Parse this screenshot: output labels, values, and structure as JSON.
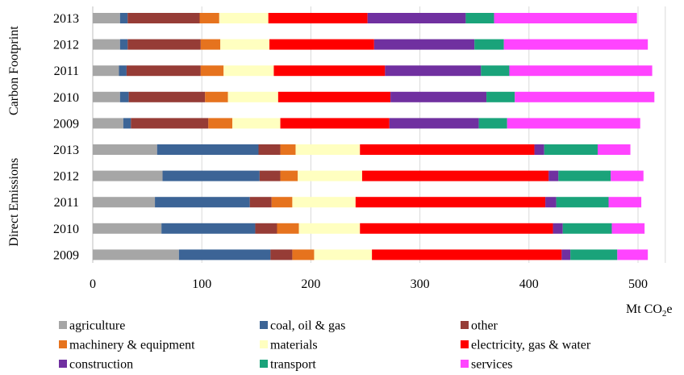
{
  "chart_data": {
    "type": "bar",
    "orientation": "horizontal",
    "stacked": true,
    "xlabel_unit": "Mt CO",
    "xlabel_subscript": "2",
    "xlabel_suffix": "e",
    "xlim": [
      0,
      525
    ],
    "xticks": [
      0,
      100,
      200,
      300,
      400,
      500
    ],
    "grid": true,
    "legend_position": "bottom",
    "groups": [
      {
        "name": "Carbon Footprint",
        "categories": [
          "2013",
          "2012",
          "2011",
          "2010",
          "2009"
        ]
      },
      {
        "name": "Direct Emissions",
        "categories": [
          "2013",
          "2012",
          "2011",
          "2010",
          "2009"
        ]
      }
    ],
    "series": [
      {
        "name": "agriculture",
        "color": "#a6a6a6",
        "values": [
          25,
          25,
          24,
          25,
          28,
          59,
          64,
          57,
          63,
          79
        ]
      },
      {
        "name": "coal, oil & gas",
        "color": "#3c6496",
        "values": [
          7,
          7,
          7,
          8,
          7,
          93,
          89,
          87,
          86,
          84
        ]
      },
      {
        "name": "other",
        "color": "#963c36",
        "values": [
          66,
          67,
          68,
          70,
          71,
          20,
          19,
          20,
          20,
          20
        ]
      },
      {
        "name": "machinery & equipment",
        "color": "#e6731e",
        "values": [
          18,
          18,
          21,
          21,
          22,
          14,
          16,
          19,
          20,
          20
        ]
      },
      {
        "name": "materials",
        "color": "#ffffc0",
        "values": [
          45,
          45,
          46,
          46,
          44,
          59,
          59,
          58,
          56,
          53
        ]
      },
      {
        "name": "electricity, gas & water",
        "color": "#ff0000",
        "values": [
          91,
          96,
          102,
          103,
          100,
          160,
          171,
          174,
          177,
          174
        ]
      },
      {
        "name": "construction",
        "color": "#7030a0",
        "values": [
          90,
          92,
          88,
          88,
          82,
          9,
          9,
          10,
          9,
          8
        ]
      },
      {
        "name": "transport",
        "color": "#1aa37a",
        "values": [
          26,
          27,
          26,
          26,
          26,
          49,
          48,
          48,
          45,
          43
        ]
      },
      {
        "name": "services",
        "color": "#ff44ff",
        "values": [
          131,
          132,
          131,
          128,
          122,
          30,
          30,
          30,
          30,
          28
        ]
      }
    ]
  }
}
